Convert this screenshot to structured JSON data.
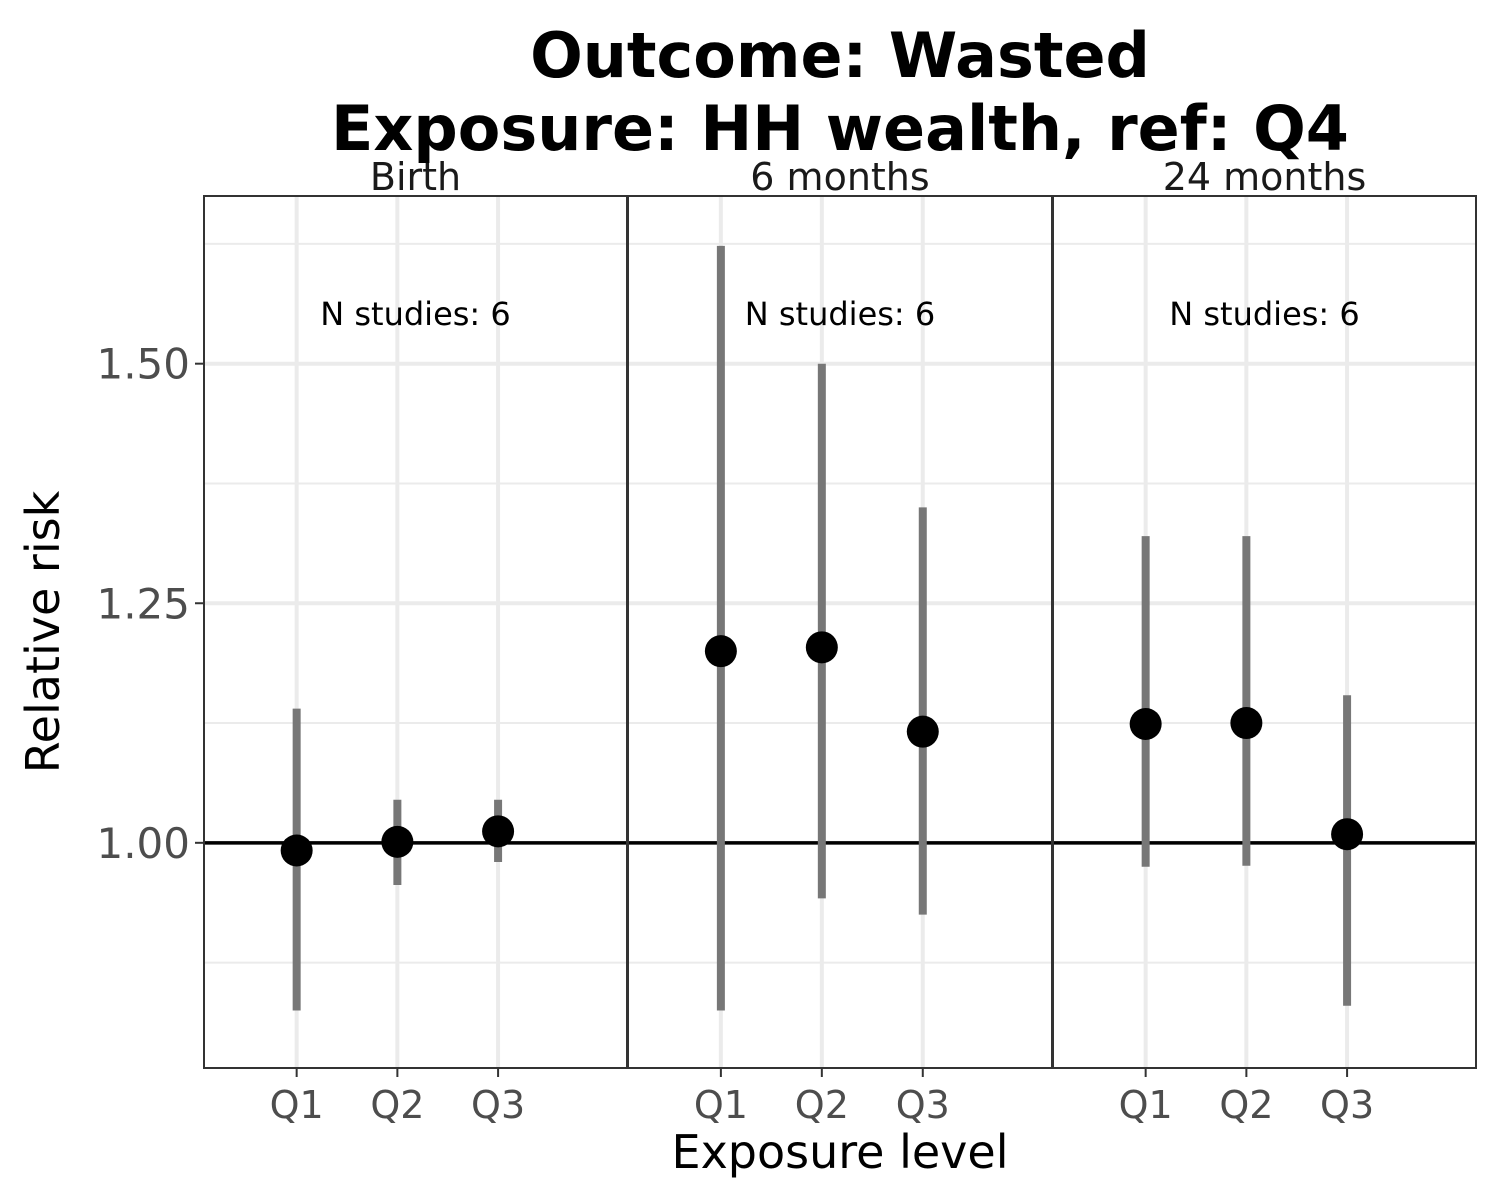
{
  "chart_data": {
    "type": "scatter",
    "title_line1": "Outcome: Wasted",
    "title_line2": "Exposure: HH wealth, ref: Q4",
    "xlabel": "Exposure level",
    "ylabel": "Relative risk",
    "categories": [
      "Q1",
      "Q2",
      "Q3"
    ],
    "yticks": [
      "1.00",
      "1.25",
      "1.50"
    ],
    "ytick_values": [
      1.0,
      1.25,
      1.5
    ],
    "ylim": [
      0.765,
      1.675
    ],
    "reference_line": 1.0,
    "grid": true,
    "panels": [
      {
        "label": "Birth",
        "annotation": "N studies: 6",
        "points": [
          {
            "x": "Q1",
            "rr": 0.992,
            "ci_low": 0.825,
            "ci_high": 1.14
          },
          {
            "x": "Q2",
            "rr": 1.001,
            "ci_low": 0.956,
            "ci_high": 1.045
          },
          {
            "x": "Q3",
            "rr": 1.012,
            "ci_low": 0.98,
            "ci_high": 1.045
          }
        ]
      },
      {
        "label": "6 months",
        "annotation": "N studies: 6",
        "points": [
          {
            "x": "Q1",
            "rr": 1.2,
            "ci_low": 0.825,
            "ci_high": 1.623
          },
          {
            "x": "Q2",
            "rr": 1.204,
            "ci_low": 0.942,
            "ci_high": 1.5
          },
          {
            "x": "Q3",
            "rr": 1.116,
            "ci_low": 0.925,
            "ci_high": 1.35
          }
        ]
      },
      {
        "label": "24 months",
        "annotation": "N studies: 6",
        "points": [
          {
            "x": "Q1",
            "rr": 1.124,
            "ci_low": 0.975,
            "ci_high": 1.32
          },
          {
            "x": "Q2",
            "rr": 1.125,
            "ci_low": 0.976,
            "ci_high": 1.32
          },
          {
            "x": "Q3",
            "rr": 1.009,
            "ci_low": 0.83,
            "ci_high": 1.154
          }
        ]
      }
    ]
  }
}
